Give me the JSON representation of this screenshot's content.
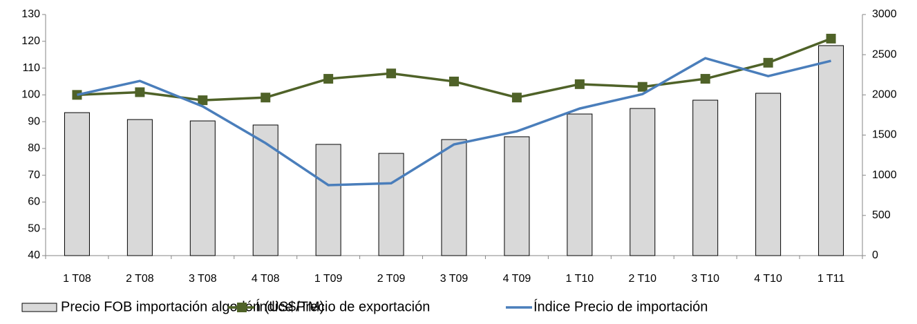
{
  "chart_data": {
    "type": "bar_line",
    "categories": [
      "1 T08",
      "2 T08",
      "3 T08",
      "4 T08",
      "1 T09",
      "2 T09",
      "3 T09",
      "4 T09",
      "1 T10",
      "2 T10",
      "3 T10",
      "4 T10",
      "1 T11"
    ],
    "series": [
      {
        "name": "Precio FOB importación algodón (US$/TM)",
        "color": "#d9d9d9",
        "type": "bar",
        "axis": "y2",
        "values": [
          1779,
          1693,
          1676,
          1625,
          1384,
          1272,
          1444,
          1479,
          1762,
          1831,
          1934,
          2020,
          2613
        ]
      },
      {
        "name": "Índice Precio de exportación",
        "color": "#4f6228",
        "type": "line",
        "marker": "square",
        "values": [
          100,
          101,
          98,
          99,
          106,
          108,
          105,
          99,
          104,
          103,
          106,
          112,
          121
        ]
      },
      {
        "name": "Índice Precio de importación",
        "color": "#4a7ebb",
        "type": "line",
        "values": [
          100,
          105.2,
          95.7,
          82,
          66.3,
          67,
          81.5,
          86.4,
          94.9,
          100.3,
          113.7,
          107,
          112.7
        ]
      }
    ],
    "ylim": [
      40,
      130
    ],
    "yticks": [
      40,
      50,
      60,
      70,
      80,
      90,
      100,
      110,
      120,
      130
    ],
    "y2lim": [
      0,
      3000
    ],
    "y2ticks": [
      0,
      500,
      1000,
      1500,
      2000,
      2500,
      3000
    ],
    "legend": "bottom"
  }
}
